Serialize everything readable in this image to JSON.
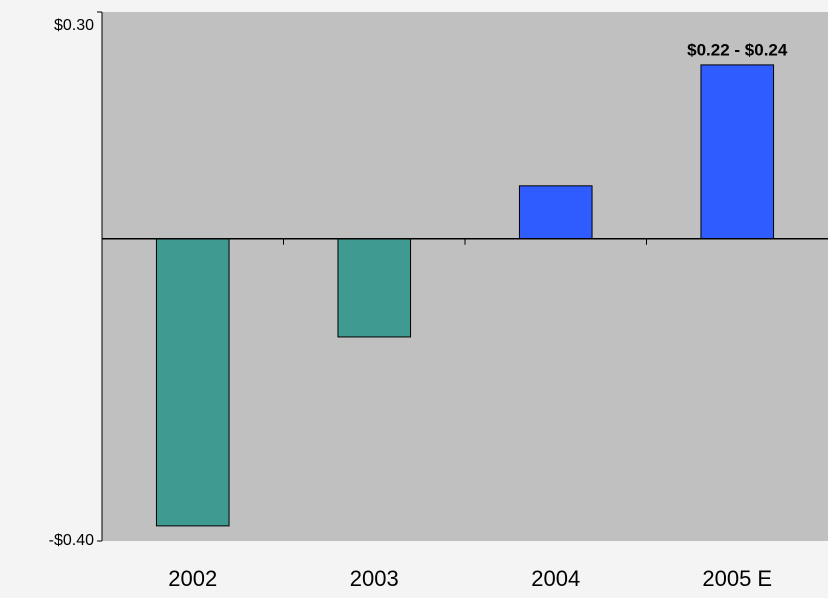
{
  "chart_data": {
    "type": "bar",
    "categories": [
      "2002",
      "2003",
      "2004",
      "2005 E"
    ],
    "values": [
      -0.38,
      -0.13,
      0.07,
      0.23
    ],
    "colors": [
      "#3f9b92",
      "#3f9b92",
      "#2f5cff",
      "#2f5cff"
    ],
    "annotation": "$0.22 - $0.24",
    "ylim": [
      -0.4,
      0.3
    ],
    "yticks": [
      {
        "value": 0.3,
        "label": "$0.30"
      },
      {
        "value": -0.4,
        "label": "-$0.40"
      }
    ],
    "grid": false
  }
}
